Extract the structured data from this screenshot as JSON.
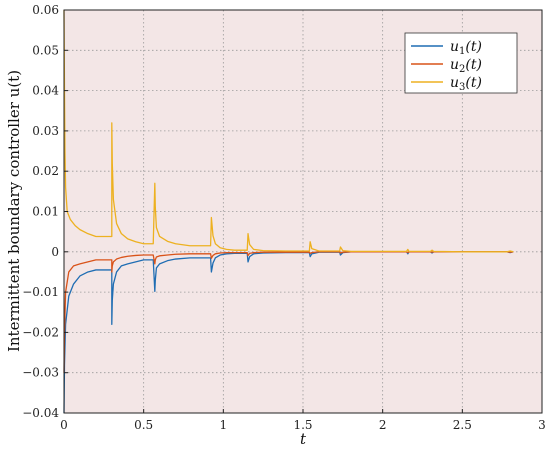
{
  "chart_data": {
    "type": "line",
    "title": "",
    "xlabel": "t",
    "ylabel": "Intermittent boundary controller u(t)",
    "xlim": [
      0,
      3
    ],
    "ylim": [
      -0.04,
      0.06
    ],
    "xticks": [
      "0",
      "0.5",
      "1",
      "1.5",
      "2",
      "2.5",
      "3"
    ],
    "yticks": [
      "-0.04",
      "-0.03",
      "-0.02",
      "-0.01",
      "0",
      "0.01",
      "0.02",
      "0.03",
      "0.04",
      "0.05",
      "0.06"
    ],
    "grid": true,
    "legend_position": "top-right",
    "background": "#f3e6e6",
    "series": [
      {
        "name": "u1(t)",
        "label_base": "u",
        "label_sub": "1",
        "label_arg": "(t)",
        "color": "#1f6db3",
        "x": [
          0,
          0.003,
          0.01,
          0.03,
          0.06,
          0.1,
          0.15,
          0.2,
          0.3,
          0.3,
          0.303,
          0.31,
          0.33,
          0.36,
          0.4,
          0.45,
          0.5,
          0.56,
          0.57,
          0.573,
          0.58,
          0.6,
          0.65,
          0.7,
          0.79,
          0.92,
          0.925,
          0.935,
          0.95,
          0.98,
          1.02,
          1.07,
          1.15,
          1.155,
          1.165,
          1.19,
          1.25,
          1.39,
          1.54,
          1.545,
          1.555,
          1.6,
          1.73,
          1.735,
          1.75,
          1.8,
          2.15,
          2.158,
          2.165,
          2.3,
          2.31,
          2.32,
          2.5,
          2.78,
          2.8,
          2.82
        ],
        "y": [
          -0.04,
          -0.028,
          -0.018,
          -0.011,
          -0.008,
          -0.006,
          -0.005,
          -0.0045,
          -0.0045,
          -0.018,
          -0.012,
          -0.008,
          -0.005,
          -0.0035,
          -0.003,
          -0.0025,
          -0.002,
          -0.002,
          -0.0098,
          -0.007,
          -0.004,
          -0.003,
          -0.0022,
          -0.0018,
          -0.0015,
          -0.0015,
          -0.005,
          -0.0028,
          -0.0015,
          -0.0008,
          -0.0005,
          -0.0004,
          -0.0004,
          -0.0025,
          -0.0012,
          -0.0005,
          -0.0003,
          -0.0002,
          -0.0002,
          -0.0012,
          -0.0005,
          -0.0001,
          -0.0001,
          -0.0008,
          -0.0002,
          0,
          0,
          -0.0005,
          0,
          0,
          -0.0003,
          0,
          0,
          0,
          -0.0002,
          0
        ]
      },
      {
        "name": "u2(t)",
        "label_base": "u",
        "label_sub": "2",
        "label_arg": "(t)",
        "color": "#d95319",
        "x": [
          0,
          0.003,
          0.01,
          0.03,
          0.06,
          0.1,
          0.15,
          0.2,
          0.3,
          0.3,
          0.303,
          0.31,
          0.33,
          0.36,
          0.4,
          0.45,
          0.5,
          0.56,
          0.57,
          0.573,
          0.58,
          0.6,
          0.65,
          0.7,
          0.79,
          0.92,
          0.925,
          0.935,
          0.95,
          0.98,
          1.02,
          1.07,
          1.15,
          1.155,
          1.165,
          1.19,
          1.25,
          1.39,
          1.54,
          1.545,
          1.555,
          1.6,
          1.73,
          1.735,
          1.75,
          1.8,
          2.15,
          2.158,
          2.165,
          2.3,
          2.31,
          2.32,
          2.5,
          2.78,
          2.8,
          2.82
        ],
        "y": [
          -0.03,
          -0.02,
          -0.01,
          -0.005,
          -0.0035,
          -0.003,
          -0.0025,
          -0.002,
          -0.002,
          -0.005,
          -0.0035,
          -0.0025,
          -0.0018,
          -0.0014,
          -0.0011,
          -0.0009,
          -0.0008,
          -0.0008,
          -0.003,
          -0.002,
          -0.0013,
          -0.001,
          -0.0008,
          -0.0006,
          -0.0005,
          -0.0005,
          -0.0016,
          -0.0009,
          -0.0005,
          -0.0003,
          -0.0002,
          -0.0002,
          -0.0002,
          -0.0009,
          -0.0004,
          -0.0002,
          -0.0001,
          -0.0001,
          -0.0001,
          -0.0004,
          -0.0002,
          0,
          0,
          -0.0003,
          -0.0001,
          0,
          0,
          -0.0002,
          0,
          0,
          -0.0001,
          0,
          0,
          0,
          -0.0001,
          0
        ]
      },
      {
        "name": "u3(t)",
        "label_base": "u",
        "label_sub": "3",
        "label_arg": "(t)",
        "color": "#edb120",
        "x": [
          0,
          0.003,
          0.006,
          0.01,
          0.02,
          0.04,
          0.07,
          0.1,
          0.15,
          0.2,
          0.3,
          0.3,
          0.303,
          0.31,
          0.33,
          0.36,
          0.4,
          0.45,
          0.5,
          0.56,
          0.57,
          0.573,
          0.58,
          0.6,
          0.65,
          0.7,
          0.79,
          0.92,
          0.925,
          0.935,
          0.95,
          0.98,
          1.02,
          1.07,
          1.15,
          1.155,
          1.165,
          1.19,
          1.25,
          1.39,
          1.54,
          1.545,
          1.555,
          1.6,
          1.73,
          1.735,
          1.75,
          1.8,
          2.15,
          2.158,
          2.165,
          2.3,
          2.31,
          2.32,
          2.5,
          2.78,
          2.8,
          2.82
        ],
        "y": [
          0.06,
          0.04,
          0.025,
          0.016,
          0.01,
          0.008,
          0.0065,
          0.0055,
          0.0045,
          0.0038,
          0.0038,
          0.032,
          0.022,
          0.013,
          0.007,
          0.0045,
          0.0032,
          0.0025,
          0.002,
          0.002,
          0.017,
          0.011,
          0.006,
          0.0038,
          0.0026,
          0.002,
          0.0015,
          0.0015,
          0.0085,
          0.004,
          0.002,
          0.001,
          0.0006,
          0.0004,
          0.0004,
          0.0045,
          0.0018,
          0.0006,
          0.0003,
          0.0002,
          0.0002,
          0.0025,
          0.0008,
          0.0002,
          0.0002,
          0.0012,
          0.0003,
          0.0001,
          0.0001,
          0.0006,
          0.0001,
          0.0001,
          0.0004,
          0.0001,
          0,
          0,
          0.0002,
          0
        ]
      }
    ]
  }
}
